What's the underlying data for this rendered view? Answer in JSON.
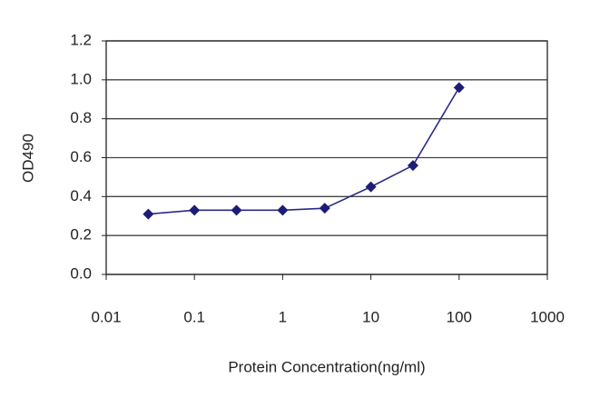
{
  "chart_data": {
    "type": "line",
    "x_label": "Protein Concentration(ng/ml)",
    "y_label": "OD490",
    "x": [
      0.03,
      0.1,
      0.3,
      1,
      3,
      10,
      30,
      100
    ],
    "values": [
      0.31,
      0.33,
      0.33,
      0.33,
      0.34,
      0.45,
      0.56,
      0.96
    ],
    "color": "#2a2a8c",
    "marker_color": "#1c1c78",
    "xscale": "log",
    "xlim": [
      0.01,
      1000
    ],
    "xticks": [
      0.01,
      0.1,
      1,
      10,
      100,
      1000
    ],
    "ylim": [
      0,
      1.2
    ],
    "yticks": [
      {
        "value": 0,
        "label": "0.0"
      },
      0.2,
      0.4,
      0.6,
      0.8,
      {
        "value": 1,
        "label": "1.0"
      },
      1.2
    ],
    "grid": true
  }
}
